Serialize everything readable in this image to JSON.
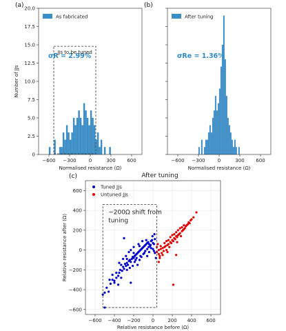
{
  "chart_data": [
    {
      "type": "bar",
      "panel_label": "(a)",
      "legend": "As fabricated",
      "annotation": "σR = 2.99%",
      "box_label": "JJs to be tuned",
      "xlabel": "Normalised resistance (Ω)",
      "ylabel": "Number of JJs",
      "xlim": [
        -750,
        750
      ],
      "ylim": [
        0,
        20
      ],
      "xticks": [
        -600,
        -300,
        0,
        300,
        600
      ],
      "yticks": [
        0,
        2.5,
        5.0,
        7.5,
        10.0,
        12.5,
        15.0,
        17.5,
        20.0
      ],
      "ytick_labels": [
        "0",
        "2.5",
        "5.0",
        "7.5",
        "10.0",
        "12.5",
        "15.0",
        "17.5",
        "20.0"
      ],
      "bin_start": -600,
      "bin_width": 25,
      "values": [
        1,
        0,
        0,
        2,
        0,
        0,
        1,
        1,
        3,
        2,
        4,
        3,
        2,
        3,
        5,
        4,
        5,
        6,
        5,
        4,
        7,
        6,
        5,
        4,
        6,
        5,
        4,
        2,
        3,
        1,
        2,
        0,
        1,
        0,
        0,
        1
      ],
      "box_range": [
        -530,
        80
      ]
    },
    {
      "type": "bar",
      "panel_label": "(b)",
      "legend": "After tuning",
      "annotation": "σRe = 1.36%",
      "xlabel": "Normalised resistance (Ω)",
      "ylabel": "",
      "xlim": [
        -750,
        750
      ],
      "ylim": [
        0,
        20
      ],
      "xticks": [
        -600,
        -300,
        0,
        300,
        600
      ],
      "yticks": [
        0,
        2.5,
        5.0,
        7.5,
        10.0,
        12.5,
        15.0,
        17.5,
        20.0
      ],
      "bin_start": -300,
      "bin_width": 20,
      "values": [
        1,
        0,
        2,
        0,
        1,
        2,
        2,
        3,
        4,
        3,
        5,
        6,
        8,
        6,
        7,
        9,
        12,
        15,
        19,
        13,
        8,
        5,
        4,
        3,
        2,
        1,
        2,
        1,
        0,
        1
      ]
    },
    {
      "type": "scatter",
      "panel_label": "(c)",
      "title": "After tuning",
      "xlabel": "Relative resistance before (Ω)",
      "ylabel": "Relative resistance after (Ω)",
      "xlim": [
        -700,
        700
      ],
      "ylim": [
        -650,
        700
      ],
      "xticks": [
        -600,
        -400,
        -200,
        0,
        200,
        400,
        600
      ],
      "yticks": [
        -600,
        -400,
        -200,
        0,
        200,
        400,
        600
      ],
      "box_text_1": "~200Ω shift from",
      "box_text_2": "tuning",
      "box_x": [
        -520,
        40
      ],
      "box_y": [
        -580,
        460
      ],
      "series": [
        {
          "name": "Tuned JJs",
          "color": "#0000cc",
          "points": [
            [
              -520,
              -450
            ],
            [
              -500,
              -430
            ],
            [
              -460,
              -420
            ],
            [
              -480,
              -380
            ],
            [
              -440,
              -340
            ],
            [
              -420,
              -300
            ],
            [
              -400,
              -310
            ],
            [
              -380,
              -280
            ],
            [
              -420,
              -250
            ],
            [
              -360,
              -260
            ],
            [
              -350,
              -230
            ],
            [
              -340,
              -200
            ],
            [
              -320,
              -210
            ],
            [
              -300,
              -190
            ],
            [
              -310,
              -170
            ],
            [
              -280,
              -160
            ],
            [
              -290,
              -140
            ],
            [
              -270,
              -130
            ],
            [
              -260,
              -150
            ],
            [
              -250,
              -110
            ],
            [
              -240,
              -100
            ],
            [
              -230,
              -120
            ],
            [
              -220,
              -90
            ],
            [
              -210,
              -70
            ],
            [
              -200,
              -80
            ],
            [
              -190,
              -60
            ],
            [
              -180,
              -50
            ],
            [
              -170,
              -40
            ],
            [
              -160,
              -30
            ],
            [
              -150,
              -20
            ],
            [
              -140,
              -10
            ],
            [
              -130,
              0
            ],
            [
              -120,
              10
            ],
            [
              -110,
              20
            ],
            [
              -100,
              30
            ],
            [
              -90,
              40
            ],
            [
              -80,
              50
            ],
            [
              -70,
              60
            ],
            [
              -60,
              70
            ],
            [
              -50,
              80
            ],
            [
              -40,
              60
            ],
            [
              -30,
              40
            ],
            [
              -20,
              90
            ],
            [
              -10,
              100
            ],
            [
              0,
              70
            ],
            [
              10,
              60
            ],
            [
              20,
              110
            ],
            [
              -300,
              120
            ],
            [
              -280,
              -60
            ],
            [
              -250,
              -20
            ],
            [
              -230,
              0
            ],
            [
              -200,
              30
            ],
            [
              -180,
              -100
            ],
            [
              -150,
              60
            ],
            [
              -130,
              -60
            ],
            [
              -110,
              90
            ],
            [
              -90,
              -30
            ],
            [
              -70,
              100
            ],
            [
              -60,
              10
            ],
            [
              -40,
              -20
            ],
            [
              -20,
              20
            ],
            [
              0,
              10
            ],
            [
              10,
              -10
            ],
            [
              20,
              -30
            ],
            [
              -350,
              -130
            ],
            [
              -330,
              -150
            ],
            [
              -310,
              -90
            ],
            [
              -270,
              -200
            ],
            [
              -240,
              -180
            ],
            [
              -210,
              -160
            ],
            [
              -190,
              -120
            ],
            [
              -170,
              -80
            ],
            [
              -160,
              -150
            ],
            [
              -140,
              -100
            ],
            [
              -120,
              -70
            ],
            [
              -100,
              -40
            ],
            [
              -80,
              -10
            ],
            [
              -60,
              -60
            ],
            [
              -45,
              30
            ],
            [
              -25,
              50
            ],
            [
              -5,
              140
            ],
            [
              15,
              160
            ],
            [
              30,
              -80
            ],
            [
              -400,
              -330
            ],
            [
              -380,
              -230
            ],
            [
              -500,
              -580
            ],
            [
              -450,
              -300
            ],
            [
              -360,
              -350
            ],
            [
              -330,
              -280
            ],
            [
              -230,
              -330
            ],
            [
              -270,
              -90
            ],
            [
              -200,
              -30
            ],
            [
              -140,
              40
            ]
          ]
        },
        {
          "name": "Untuned JJs",
          "color": "#dd0000",
          "points": [
            [
              40,
              -20
            ],
            [
              60,
              -40
            ],
            [
              60,
              0
            ],
            [
              80,
              10
            ],
            [
              90,
              -30
            ],
            [
              100,
              20
            ],
            [
              110,
              -10
            ],
            [
              120,
              30
            ],
            [
              130,
              40
            ],
            [
              140,
              0
            ],
            [
              150,
              50
            ],
            [
              160,
              60
            ],
            [
              170,
              30
            ],
            [
              180,
              80
            ],
            [
              190,
              70
            ],
            [
              200,
              100
            ],
            [
              210,
              90
            ],
            [
              220,
              120
            ],
            [
              230,
              110
            ],
            [
              240,
              140
            ],
            [
              250,
              130
            ],
            [
              260,
              150
            ],
            [
              270,
              160
            ],
            [
              280,
              170
            ],
            [
              290,
              140
            ],
            [
              300,
              190
            ],
            [
              310,
              200
            ],
            [
              320,
              210
            ],
            [
              330,
              220
            ],
            [
              340,
              240
            ],
            [
              350,
              250
            ],
            [
              360,
              260
            ],
            [
              370,
              280
            ],
            [
              380,
              270
            ],
            [
              390,
              300
            ],
            [
              400,
              310
            ],
            [
              420,
              330
            ],
            [
              450,
              380
            ],
            [
              40,
              30
            ],
            [
              50,
              60
            ],
            [
              70,
              -60
            ],
            [
              80,
              40
            ],
            [
              100,
              -50
            ],
            [
              120,
              70
            ],
            [
              140,
              90
            ],
            [
              160,
              100
            ],
            [
              180,
              130
            ],
            [
              200,
              150
            ],
            [
              220,
              160
            ],
            [
              240,
              180
            ],
            [
              260,
              200
            ],
            [
              280,
              220
            ],
            [
              300,
              230
            ],
            [
              320,
              250
            ],
            [
              250,
              80
            ],
            [
              150,
              -20
            ],
            [
              210,
              -350
            ],
            [
              240,
              -50
            ],
            [
              60,
              -120
            ],
            [
              70,
              -80
            ]
          ]
        }
      ]
    }
  ]
}
